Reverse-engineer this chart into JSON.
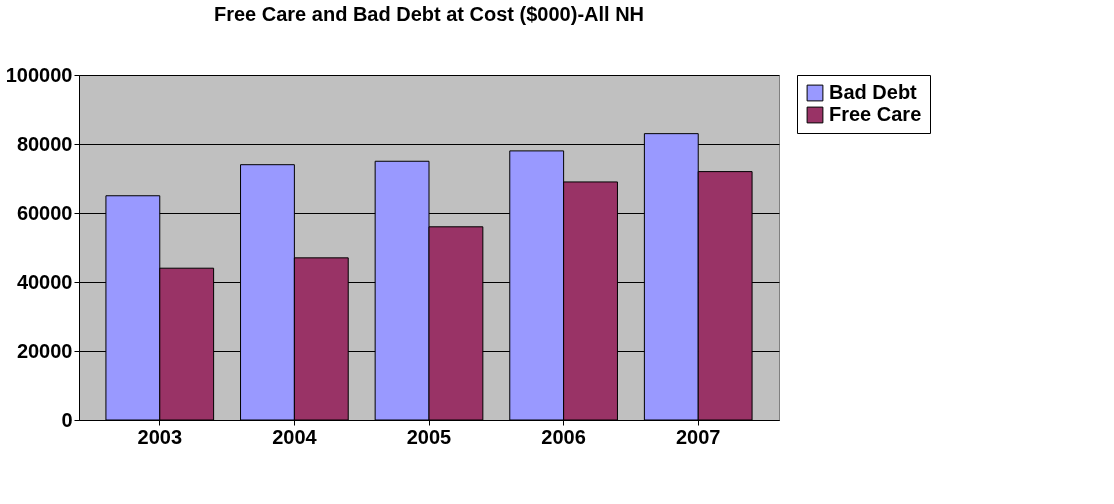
{
  "chart_data": {
    "type": "bar",
    "title": "Free Care and Bad Debt at Cost ($000)-All NH",
    "categories": [
      "2003",
      "2004",
      "2005",
      "2006",
      "2007"
    ],
    "series": [
      {
        "name": "Bad Debt",
        "color": "#9999ff",
        "values": [
          65000,
          74000,
          75000,
          78000,
          83000
        ]
      },
      {
        "name": "Free Care",
        "color": "#993366",
        "values": [
          44000,
          47000,
          56000,
          69000,
          72000
        ]
      }
    ],
    "ylim": [
      0,
      100000
    ],
    "yticks": [
      0,
      20000,
      40000,
      60000,
      80000,
      100000
    ],
    "grid": "y",
    "legend": "right"
  }
}
